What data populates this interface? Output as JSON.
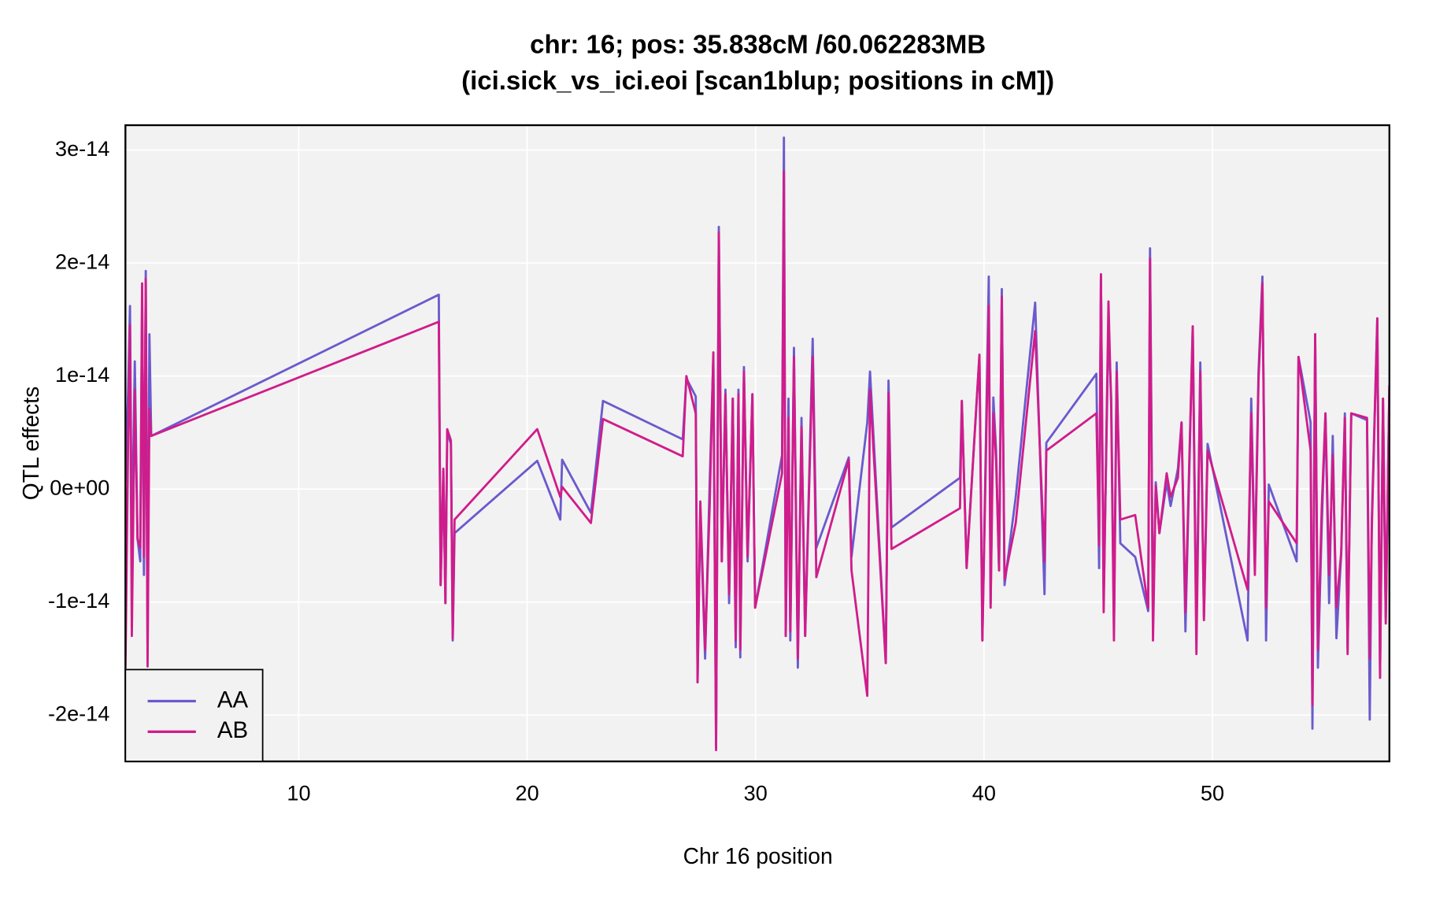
{
  "chart_data": {
    "type": "line",
    "title": "chr: 16; pos: 35.838cM /60.062283MB",
    "subtitle": "(ici.sick_vs_ici.eoi [scan1blup; positions in cM])",
    "x_label": "Chr 16 position",
    "y_label": "QTL effects",
    "xlim": [
      2.41,
      57.75
    ],
    "ylim": [
      -2.41e-14,
      3.22e-14
    ],
    "xticks": [
      10,
      20,
      30,
      40,
      50
    ],
    "yticks": [
      3e-14,
      2e-14,
      1e-14,
      {
        "value": 0,
        "label": "0e+00"
      },
      -1e-14,
      -2e-14
    ],
    "grid": true,
    "legend": "bottomleft",
    "x": [
      2.41,
      2.53,
      2.61,
      2.69,
      2.82,
      2.94,
      3.06,
      3.14,
      3.22,
      3.3,
      3.38,
      3.46,
      3.54,
      16.13,
      16.21,
      16.33,
      16.42,
      16.5,
      16.66,
      16.74,
      16.82,
      20.44,
      21.45,
      21.53,
      22.79,
      23.32,
      26.81,
      26.97,
      27.38,
      27.46,
      27.58,
      27.79,
      27.99,
      28.15,
      28.27,
      28.39,
      28.52,
      28.68,
      28.84,
      29.0,
      29.13,
      29.25,
      29.33,
      29.49,
      29.65,
      29.86,
      29.98,
      31.16,
      31.24,
      31.32,
      31.44,
      31.52,
      31.68,
      31.85,
      32.01,
      32.17,
      32.5,
      32.66,
      34.08,
      34.2,
      34.89,
      35.01,
      35.7,
      35.82,
      35.95,
      38.95,
      39.03,
      39.24,
      39.8,
      39.93,
      40.21,
      40.29,
      40.41,
      40.53,
      40.66,
      40.78,
      40.9,
      41.39,
      42.24,
      42.65,
      42.73,
      44.92,
      45.04,
      45.12,
      45.24,
      45.45,
      45.57,
      45.69,
      45.81,
      45.97,
      46.62,
      47.19,
      47.27,
      47.4,
      47.52,
      47.68,
      48.0,
      48.17,
      48.49,
      48.65,
      48.82,
      49.14,
      49.3,
      49.47,
      49.63,
      49.79,
      51.54,
      51.7,
      51.86,
      52.02,
      52.19,
      52.35,
      52.47,
      53.69,
      53.77,
      54.3,
      54.38,
      54.5,
      54.62,
      54.79,
      54.95,
      55.11,
      55.27,
      55.43,
      55.64,
      55.8,
      55.92,
      56.08,
      56.77,
      56.89,
      56.98,
      57.22,
      57.34,
      57.47,
      57.59,
      57.75
    ],
    "series": [
      {
        "name": "AA",
        "color": "#6a5acd",
        "values": [
          6e-16,
          8.8e-15,
          1.62e-14,
          -5.2e-15,
          1.13e-14,
          -4.4e-15,
          -6.4e-15,
          1.7e-14,
          -7.6e-15,
          1.93e-14,
          -1.46e-14,
          1.37e-14,
          4.7e-15,
          1.72e-14,
          -8.5e-15,
          1.6e-15,
          -1.01e-14,
          5.1e-15,
          4e-15,
          -1.34e-14,
          -3.9e-15,
          2.5e-15,
          -2.7e-15,
          2.6e-15,
          -2.1e-15,
          7.8e-15,
          4.4e-15,
          9.8e-15,
          8.2e-15,
          -1.71e-14,
          -1.9e-15,
          -1.5e-14,
          6e-16,
          1.17e-14,
          -2.28e-14,
          2.32e-14,
          -6.4e-15,
          8.8e-15,
          -1.01e-14,
          8e-15,
          -1.4e-14,
          8.8e-15,
          -1.49e-14,
          1.08e-14,
          -6.4e-15,
          8.4e-15,
          -1.05e-14,
          3e-15,
          3.11e-14,
          -1.3e-14,
          8e-15,
          -1.34e-14,
          1.25e-14,
          -1.58e-14,
          6.3e-15,
          -1.3e-14,
          1.33e-14,
          -5.2e-15,
          2.8e-15,
          -6e-15,
          5.9e-15,
          1.04e-14,
          -1.54e-14,
          9.6e-15,
          -3.4e-15,
          1e-15,
          7.8e-15,
          -6.8e-15,
          1.17e-14,
          -1.34e-14,
          1.88e-14,
          -1.01e-14,
          8.1e-15,
          3.4e-15,
          -7.2e-15,
          1.77e-14,
          -8.5e-15,
          -7e-16,
          1.65e-14,
          -9.3e-15,
          4.1e-15,
          1.02e-14,
          -7e-15,
          1.9e-14,
          -9.9e-15,
          1.45e-14,
          8e-15,
          -1.22e-14,
          1.12e-14,
          -4.8e-15,
          -6e-15,
          -1.08e-14,
          2.13e-14,
          -1.19e-14,
          6e-16,
          -3.9e-15,
          6e-16,
          -1.5e-15,
          1.8e-15,
          5.9e-15,
          -1.26e-14,
          1.44e-14,
          -1.28e-14,
          1.12e-14,
          -1.13e-14,
          4e-15,
          -1.34e-14,
          8e-15,
          -6.8e-15,
          1.04e-14,
          1.88e-14,
          -1.34e-14,
          4e-16,
          -6.4e-15,
          1.17e-14,
          5.9e-15,
          -2.12e-14,
          1.37e-14,
          -1.58e-14,
          -3.1e-15,
          6.7e-15,
          -1.01e-14,
          4.7e-15,
          -1.32e-14,
          -5.8e-15,
          6.7e-15,
          -1.42e-14,
          6.7e-15,
          6.1e-15,
          -2.04e-14,
          -2.7e-15,
          1.51e-14,
          -1.67e-14,
          8e-15,
          -1.13e-14,
          9.2e-15
        ]
      },
      {
        "name": "AB",
        "color": "#d01c8b",
        "values": [
          -1.58e-14,
          4.7e-15,
          1.45e-14,
          -1.3e-14,
          8.8e-15,
          -4.4e-15,
          -5.2e-15,
          1.82e-14,
          -6e-15,
          1.86e-14,
          -1.57e-14,
          7.1e-15,
          4.7e-15,
          1.48e-14,
          -8.5e-15,
          1.8e-15,
          -1.01e-14,
          5.3e-15,
          4.3e-15,
          -1.32e-14,
          -2.7e-15,
          5.3e-15,
          -7e-16,
          2e-16,
          -3e-15,
          6.2e-15,
          2.9e-15,
          1e-14,
          6.7e-15,
          -1.71e-14,
          -1.1e-15,
          -1.42e-14,
          -1.5e-15,
          1.21e-14,
          -2.31e-14,
          2.27e-14,
          -6.4e-15,
          8.4e-15,
          -9.3e-15,
          8e-15,
          -1.34e-14,
          8.4e-15,
          -1.42e-14,
          1.04e-14,
          -6e-15,
          8.4e-15,
          -1.05e-14,
          1.4e-15,
          2.81e-14,
          -1.3e-14,
          6.3e-15,
          -1.26e-14,
          1.17e-14,
          -1.5e-14,
          5.5e-15,
          -1.3e-14,
          1.17e-14,
          -7.8e-15,
          2.6e-15,
          -7.2e-15,
          -1.83e-14,
          8.8e-15,
          -1.54e-14,
          8.5e-15,
          -5.3e-15,
          -1.7e-15,
          7.8e-15,
          -7e-15,
          1.19e-14,
          -1.34e-14,
          1.62e-14,
          -1.05e-14,
          6.7e-15,
          2.6e-15,
          -7.2e-15,
          1.7e-14,
          -8e-15,
          -3e-15,
          1.4e-14,
          -6.4e-15,
          3.4e-15,
          6.7e-15,
          -5e-15,
          1.9e-14,
          -1.09e-14,
          1.66e-14,
          7.1e-15,
          -1.34e-14,
          1.04e-14,
          -2.7e-15,
          -2.3e-15,
          -1.05e-14,
          2.04e-14,
          -1.34e-14,
          3e-16,
          -3.9e-15,
          1.4e-15,
          -7e-16,
          1e-15,
          5.9e-15,
          -1.09e-14,
          1.44e-14,
          -1.46e-14,
          1.04e-14,
          -1.16e-14,
          3.4e-15,
          -8.9e-15,
          6.7e-15,
          -7.6e-15,
          9.6e-15,
          1.82e-14,
          -1.05e-14,
          -1.1e-15,
          -4.8e-15,
          1.17e-14,
          3.4e-15,
          -1.91e-14,
          1.37e-14,
          -1.42e-14,
          -1.5e-15,
          6.7e-15,
          -7.6e-15,
          3e-15,
          -1.05e-14,
          -5.6e-15,
          6.3e-15,
          -1.46e-14,
          6.7e-15,
          6.3e-15,
          -1.5e-14,
          -3.5e-15,
          1.51e-14,
          -1.67e-14,
          8e-15,
          -1.19e-14,
          9.2e-15
        ]
      }
    ]
  }
}
